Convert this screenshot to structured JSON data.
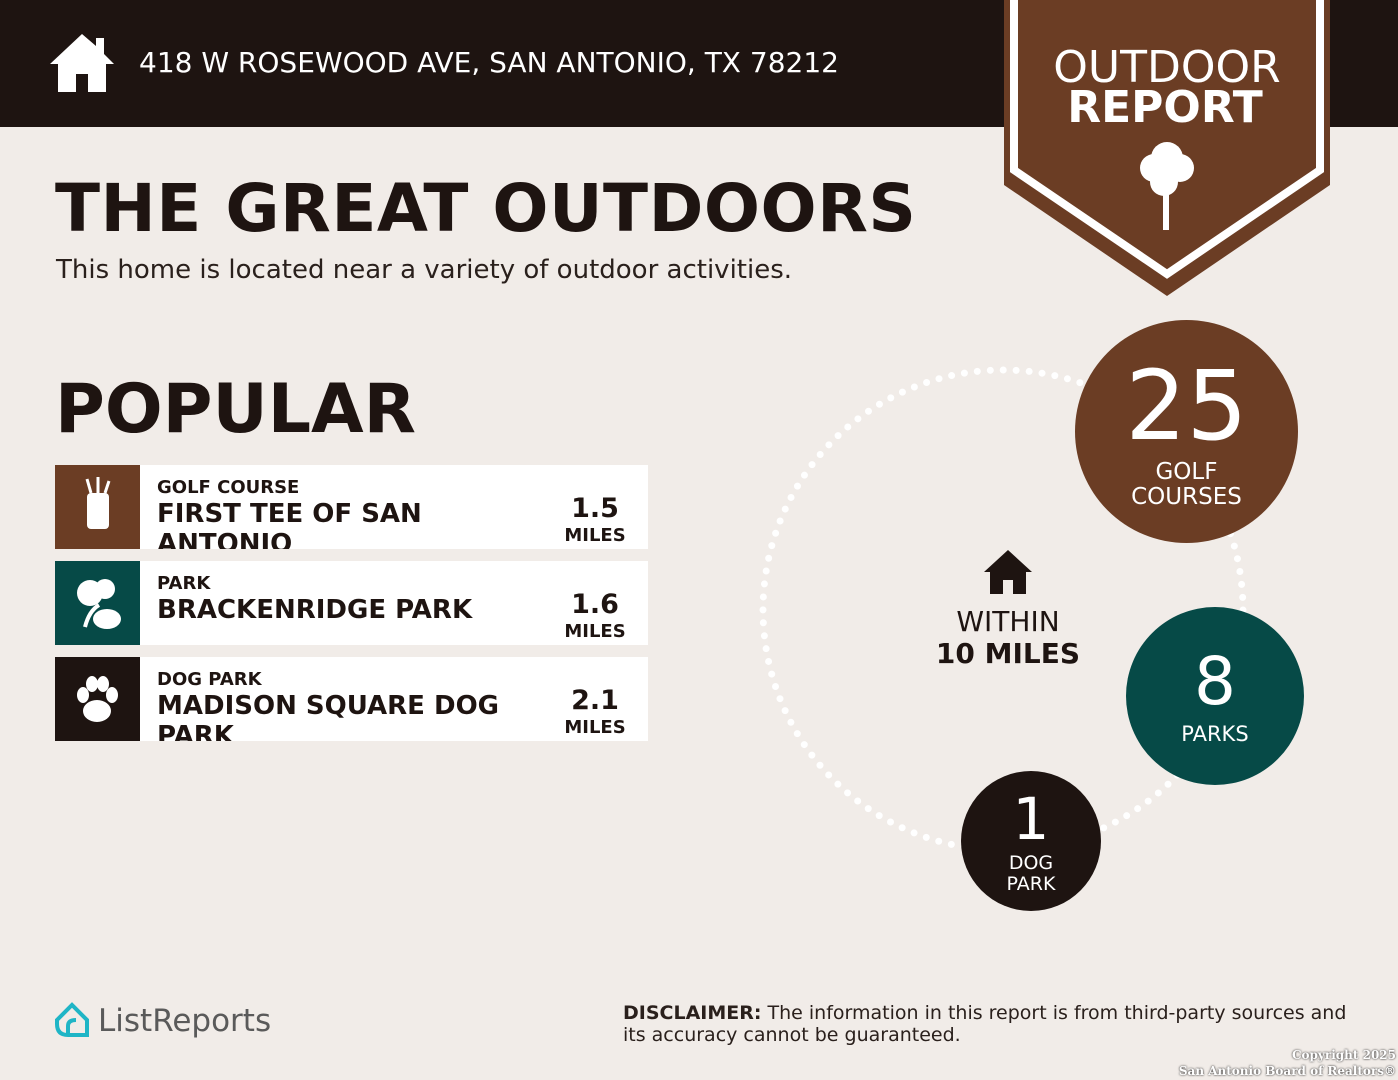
{
  "header": {
    "address": "418 W ROSEWOOD AVE, SAN ANTONIO, TX 78212"
  },
  "badge": {
    "line1": "OUTDOOR",
    "line2": "REPORT"
  },
  "title": "THE GREAT OUTDOORS",
  "subtitle": "This home is located near a variety of outdoor activities.",
  "popular": {
    "heading": "POPULAR",
    "items": [
      {
        "category": "GOLF COURSE",
        "name": "FIRST TEE OF SAN ANTONIO",
        "distance": "1.5",
        "unit": "MILES"
      },
      {
        "category": "PARK",
        "name": "BRACKENRIDGE PARK",
        "distance": "1.6",
        "unit": "MILES"
      },
      {
        "category": "DOG PARK",
        "name": "MADISON SQUARE DOG PARK",
        "distance": "2.1",
        "unit": "MILES"
      }
    ]
  },
  "summary": {
    "within": "WITHIN",
    "radius": "10 MILES",
    "counts": [
      {
        "count": "25",
        "label": "GOLF COURSES"
      },
      {
        "count": "8",
        "label": "PARKS"
      },
      {
        "count": "1",
        "label": "DOG PARK"
      }
    ]
  },
  "footer": {
    "brand": "ListReports",
    "disclaimer_label": "DISCLAIMER:",
    "disclaimer_text": "The information in this report is from third-party sources and its accuracy cannot be guaranteed.",
    "copyright": [
      "Copyright 2025",
      "San Antonio Board of Realtors®"
    ]
  }
}
